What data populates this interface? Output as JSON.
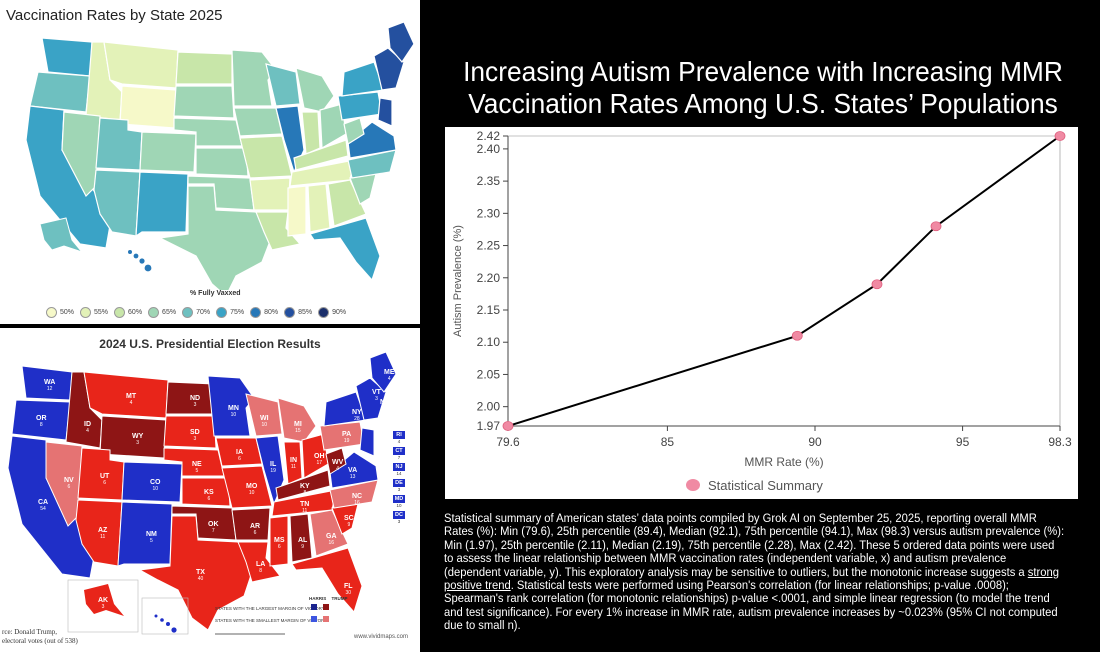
{
  "vax_map": {
    "title": "Vaccination Rates by State 2025",
    "legend_title": "% Fully Vaxxed",
    "legend": [
      {
        "label": "50%",
        "color": "#f6f9c9"
      },
      {
        "label": "55%",
        "color": "#e3f2b8"
      },
      {
        "label": "60%",
        "color": "#c8e6a9"
      },
      {
        "label": "65%",
        "color": "#9fd6b5"
      },
      {
        "label": "70%",
        "color": "#6ec0c0"
      },
      {
        "label": "75%",
        "color": "#3aa3c6"
      },
      {
        "label": "80%",
        "color": "#2778b8"
      },
      {
        "label": "85%",
        "color": "#24509f"
      },
      {
        "label": "90%",
        "color": "#1b2f6b"
      }
    ]
  },
  "election_map": {
    "title": "2024 U.S. Presidential Election Results",
    "footnote_line1": "rce: Donald Trump,",
    "footnote_line2": "electoral votes (out of 538)",
    "credit": "www.vividmaps.com",
    "key_line1": "STATES WITH THE LARGEST MARGIN OF VICTORY",
    "key_line2": "STATES WITH THE SMALLEST MARGIN OF VICTORY",
    "key_harris": "HARRIS",
    "key_trump": "TRUMP",
    "colors": {
      "blue": "#1f2fc8",
      "red": "#e8251a",
      "dark_red": "#8e1515",
      "pink": "#e57373"
    },
    "state_labels": [
      {
        "abbr": "WA",
        "ev": "12",
        "party": "blue"
      },
      {
        "abbr": "OR",
        "ev": "8",
        "party": "blue"
      },
      {
        "abbr": "CA",
        "ev": "54",
        "party": "blue"
      },
      {
        "abbr": "NV",
        "ev": "6",
        "party": "red"
      },
      {
        "abbr": "ID",
        "ev": "4",
        "party": "red"
      },
      {
        "abbr": "MT",
        "ev": "4",
        "party": "red"
      },
      {
        "abbr": "WY",
        "ev": "3",
        "party": "red"
      },
      {
        "abbr": "UT",
        "ev": "6",
        "party": "red"
      },
      {
        "abbr": "AZ",
        "ev": "11",
        "party": "red"
      },
      {
        "abbr": "CO",
        "ev": "10",
        "party": "blue"
      },
      {
        "abbr": "NM",
        "ev": "5",
        "party": "blue"
      },
      {
        "abbr": "ND",
        "ev": "3",
        "party": "red"
      },
      {
        "abbr": "SD",
        "ev": "3",
        "party": "red"
      },
      {
        "abbr": "NE",
        "ev": "5",
        "party": "red"
      },
      {
        "abbr": "KS",
        "ev": "6",
        "party": "red"
      },
      {
        "abbr": "OK",
        "ev": "7",
        "party": "red"
      },
      {
        "abbr": "TX",
        "ev": "40",
        "party": "red"
      },
      {
        "abbr": "MN",
        "ev": "10",
        "party": "blue"
      },
      {
        "abbr": "IA",
        "ev": "6",
        "party": "red"
      },
      {
        "abbr": "MO",
        "ev": "10",
        "party": "red"
      },
      {
        "abbr": "AR",
        "ev": "6",
        "party": "red"
      },
      {
        "abbr": "LA",
        "ev": "8",
        "party": "red"
      },
      {
        "abbr": "WI",
        "ev": "10",
        "party": "red"
      },
      {
        "abbr": "IL",
        "ev": "19",
        "party": "blue"
      },
      {
        "abbr": "MI",
        "ev": "15",
        "party": "red"
      },
      {
        "abbr": "IN",
        "ev": "11",
        "party": "red"
      },
      {
        "abbr": "OH",
        "ev": "17",
        "party": "red"
      },
      {
        "abbr": "KY",
        "ev": "8",
        "party": "red"
      },
      {
        "abbr": "TN",
        "ev": "11",
        "party": "red"
      },
      {
        "abbr": "MS",
        "ev": "6",
        "party": "red"
      },
      {
        "abbr": "AL",
        "ev": "9",
        "party": "red"
      },
      {
        "abbr": "GA",
        "ev": "16",
        "party": "red"
      },
      {
        "abbr": "FL",
        "ev": "30",
        "party": "red"
      },
      {
        "abbr": "SC",
        "ev": "9",
        "party": "red"
      },
      {
        "abbr": "NC",
        "ev": "16",
        "party": "red"
      },
      {
        "abbr": "VA",
        "ev": "13",
        "party": "blue"
      },
      {
        "abbr": "WV",
        "ev": "4",
        "party": "red"
      },
      {
        "abbr": "PA",
        "ev": "19",
        "party": "red"
      },
      {
        "abbr": "NY",
        "ev": "28",
        "party": "blue"
      },
      {
        "abbr": "VT",
        "ev": "3",
        "party": "blue"
      },
      {
        "abbr": "NH",
        "ev": "4",
        "party": "blue"
      },
      {
        "abbr": "ME",
        "ev": "4",
        "party": "blue"
      },
      {
        "abbr": "AK",
        "ev": "3",
        "party": "red"
      },
      {
        "abbr": "HI",
        "ev": "4",
        "party": "blue"
      }
    ],
    "small_states": [
      {
        "abbr": "RI",
        "ev": "4"
      },
      {
        "abbr": "CT",
        "ev": "7"
      },
      {
        "abbr": "NJ",
        "ev": "14"
      },
      {
        "abbr": "DE",
        "ev": "3"
      },
      {
        "abbr": "MD",
        "ev": "10"
      },
      {
        "abbr": "DC",
        "ev": "3"
      }
    ]
  },
  "headline": {
    "line1": "Increasing Autism Prevalence with Increasing MMR",
    "line2": "Vaccination Rates Among U.S. States’ Populations"
  },
  "chart_data": {
    "type": "line",
    "xlabel": "MMR Rate (%)",
    "ylabel": "Autism Prevalence (%)",
    "xlim": [
      79.6,
      98.3
    ],
    "ylim": [
      1.97,
      2.42
    ],
    "x_ticks": [
      "79.6",
      "85",
      "90",
      "95",
      "98.3"
    ],
    "y_ticks": [
      "1.97",
      "2.00",
      "2.05",
      "2.10",
      "2.15",
      "2.20",
      "2.25",
      "2.30",
      "2.35",
      "2.40",
      "2.42"
    ],
    "series": [
      {
        "name": "Statistical Summary",
        "x": [
          79.6,
          89.4,
          92.1,
          94.1,
          98.3
        ],
        "y": [
          1.97,
          2.11,
          2.19,
          2.28,
          2.42
        ]
      }
    ],
    "legend_position": "bottom",
    "grid": false,
    "marker_color": "#f08aa3",
    "line_color": "#000000"
  },
  "summary": {
    "part1": "Statistical summary of American states’ data points compiled by Grok AI on September 25, 2025, reporting overall MMR Rates (%): Min (79.6), 25th percentile (89.4), Median (92.1), 75th percentile (94.1), Max (98.3) versus autism prevalence (%): Min (1.97), 25th percentile (2.11), Median (2.19), 75th percentile (2.28), Max (2.42). These 5 ordered data points were used to assess the linear relationship between MMR vaccination rates (independent variable, x) and autism prevalence (dependent variable, y). This exploratory analysis may be sensitive to outliers, but the monotonic increase suggests a ",
    "underlined": "strong positive trend",
    "part2": ". Statistical tests were performed using Pearson's correlation (for linear relationships; p-value .0008); Spearman's rank correlation (for monotonic relationships) p-value <.0001, and simple linear regression (to model the trend and test significance). For every 1% increase in MMR rate, autism prevalence increases by ~0.023% (95% CI not computed due to small n)."
  }
}
